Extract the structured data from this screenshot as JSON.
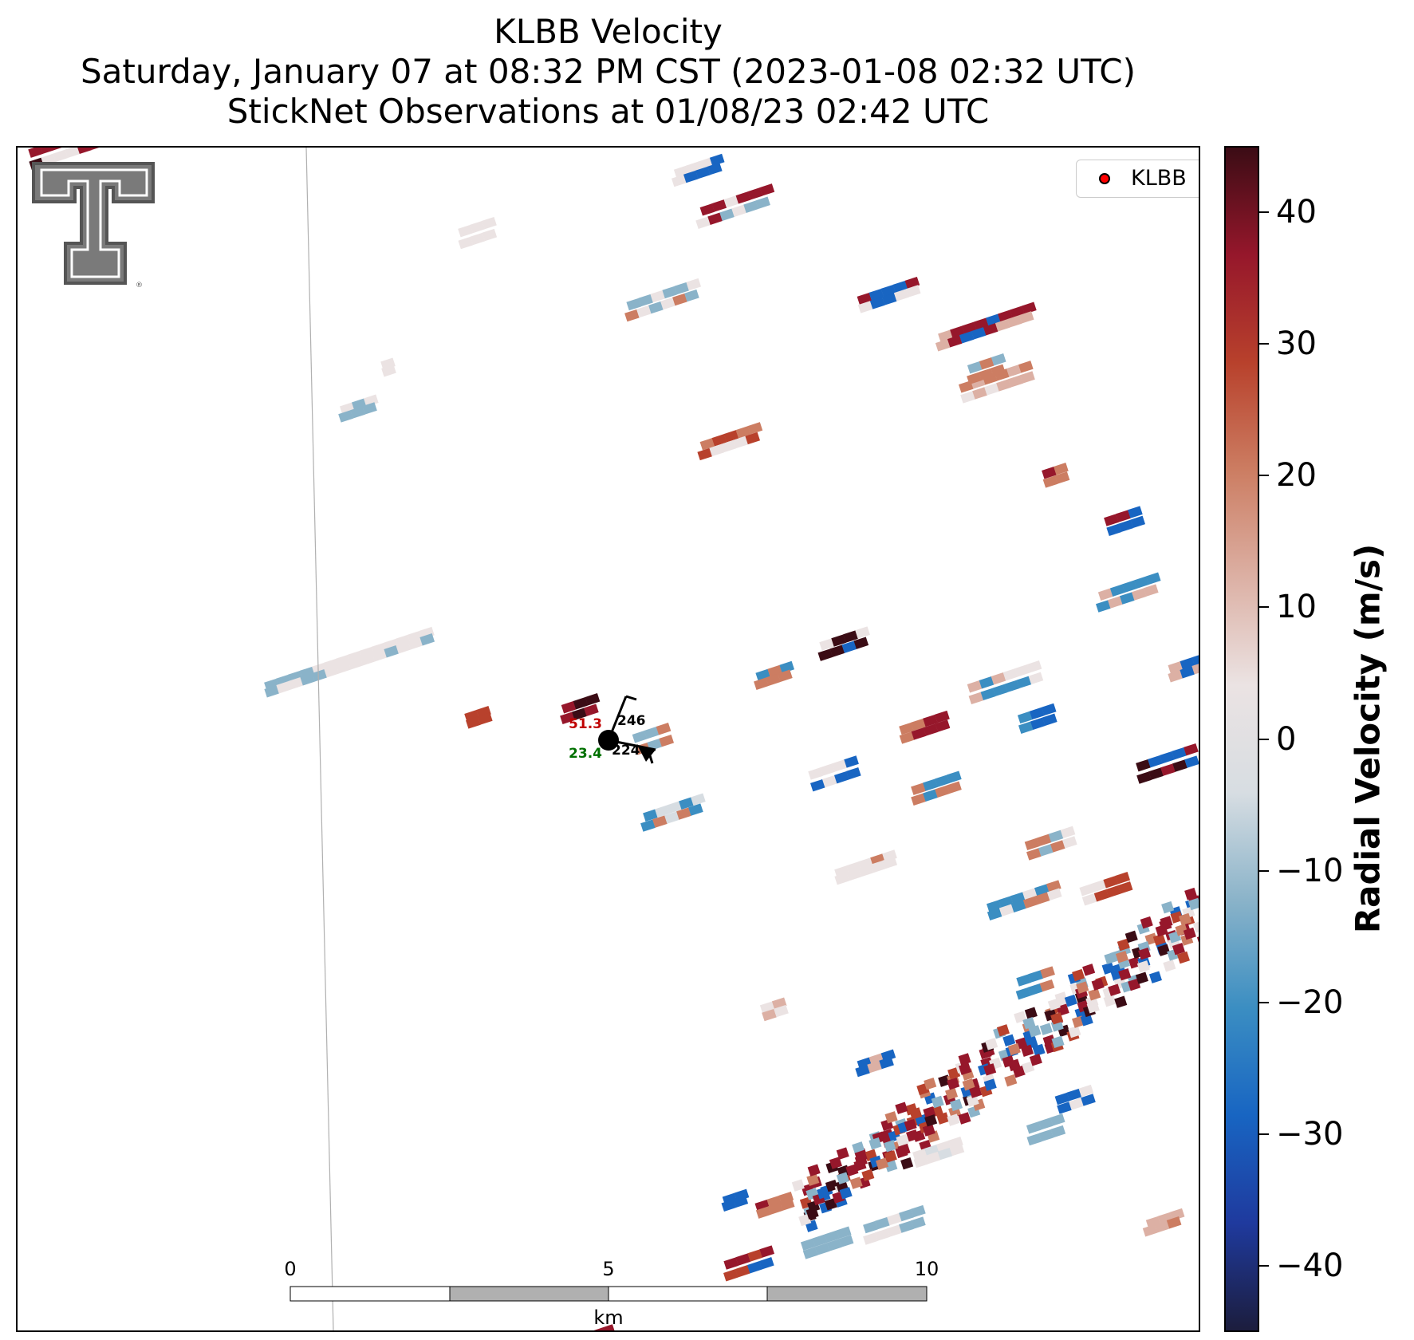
{
  "title_lines": [
    "KLBB Velocity",
    "Saturday, January 07 at 08:32 PM CST (2023-01-08 02:32 UTC)",
    "StickNet Observations at 01/08/23 02:42 UTC"
  ],
  "legend": {
    "label": "KLBB",
    "marker_color": "#ff0000"
  },
  "colorbar": {
    "label": "Radial Velocity (m/s)",
    "range": [
      -45,
      45
    ],
    "ticks": [
      40,
      30,
      20,
      10,
      0,
      -10,
      -20,
      -30,
      -40
    ],
    "tick_labels": [
      "40",
      "30",
      "20",
      "10",
      "0",
      "−10",
      "−20",
      "−30",
      "−40"
    ],
    "colors": [
      "#1c1d3d",
      "#1f3a9e",
      "#1865c2",
      "#3b8ec2",
      "#8ab3c9",
      "#d7dde2",
      "#ebe3e3",
      "#dcb0a4",
      "#cc7d62",
      "#b8412c",
      "#96172b",
      "#3b0c15"
    ]
  },
  "scale_bar": {
    "tick_labels": [
      "0",
      "5",
      "10"
    ],
    "unit": "km"
  },
  "station": {
    "temperature": "51.3",
    "dewpoint": "23.4",
    "pressure_top": "246",
    "pressure_bottom": "224",
    "temperature_color": "#c00000",
    "dewpoint_color": "#007000"
  },
  "logo": {
    "text": "TT",
    "icon": "texas-tech-double-t-logo"
  }
}
